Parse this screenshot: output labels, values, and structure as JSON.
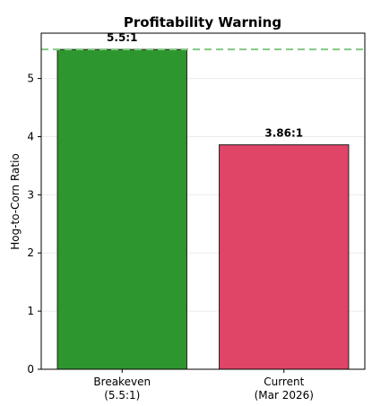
{
  "chart_data": {
    "type": "bar",
    "title": "Profitability Warning",
    "xlabel": "",
    "ylabel": "Hog-to-Corn Ratio",
    "ylim": [
      0,
      5.78
    ],
    "yticks": [
      0,
      1,
      2,
      3,
      4,
      5
    ],
    "categories": [
      "Breakeven\n(5.5:1)",
      "Current\n(Mar 2026)"
    ],
    "values": [
      5.5,
      3.86
    ],
    "data_labels": [
      "5.5:1",
      "3.86:1"
    ],
    "bar_colors": [
      "#2e962e",
      "#e04466"
    ],
    "bar_edge_color": "#222222",
    "reference_line": {
      "value": 5.5,
      "style": "dashed",
      "color": "#82c882"
    },
    "grid": "y-axis, light"
  }
}
